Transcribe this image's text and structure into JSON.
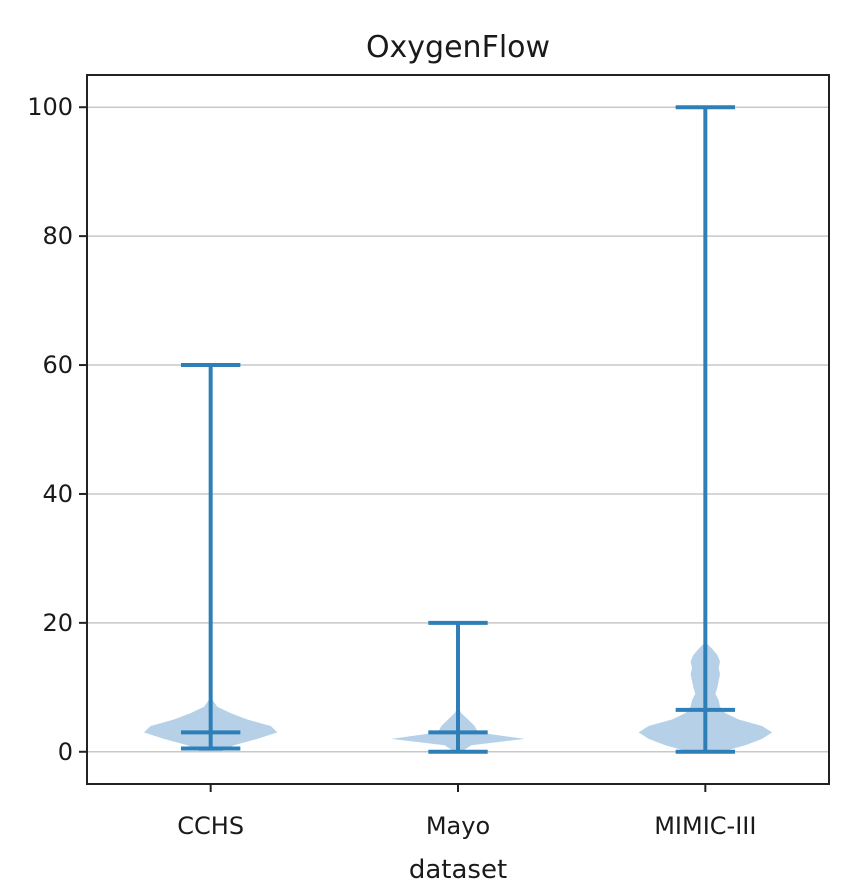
{
  "chart_data": {
    "type": "violin",
    "title": "OxygenFlow",
    "xlabel": "dataset",
    "ylabel": "",
    "ylim": [
      -5,
      105
    ],
    "yticks": [
      0,
      20,
      40,
      60,
      80,
      100
    ],
    "grid": "y",
    "colors": {
      "line": "#2e7fb8",
      "fill": "#a9c9e3",
      "grid": "#c8c8c8",
      "axis": "#222222"
    },
    "categories": [
      "CCHS",
      "Mayo",
      "MIMIC-III"
    ],
    "series": [
      {
        "category": "CCHS",
        "min": 0.5,
        "median": 3,
        "max": 60,
        "density": [
          [
            0,
            0.15
          ],
          [
            1,
            0.35
          ],
          [
            2,
            0.7
          ],
          [
            3,
            1.0
          ],
          [
            4,
            0.9
          ],
          [
            5,
            0.55
          ],
          [
            6,
            0.3
          ],
          [
            7,
            0.1
          ],
          [
            8,
            0.03
          ],
          [
            9,
            0
          ]
        ]
      },
      {
        "category": "Mayo",
        "min": 0,
        "median": 3,
        "max": 20,
        "density": [
          [
            0,
            0.05
          ],
          [
            1,
            0.2
          ],
          [
            2,
            1.0
          ],
          [
            3,
            0.3
          ],
          [
            4,
            0.25
          ],
          [
            5,
            0.15
          ],
          [
            6,
            0.05
          ],
          [
            7,
            0
          ]
        ]
      },
      {
        "category": "MIMIC-III",
        "min": 0,
        "median": 6.5,
        "max": 100,
        "density": [
          [
            0,
            0.25
          ],
          [
            1,
            0.6
          ],
          [
            2,
            0.85
          ],
          [
            3,
            1.0
          ],
          [
            4,
            0.85
          ],
          [
            5,
            0.5
          ],
          [
            6,
            0.3
          ],
          [
            7,
            0.22
          ],
          [
            8,
            0.2
          ],
          [
            9,
            0.15
          ],
          [
            10,
            0.18
          ],
          [
            11,
            0.2
          ],
          [
            12,
            0.22
          ],
          [
            13,
            0.2
          ],
          [
            14,
            0.22
          ],
          [
            15,
            0.18
          ],
          [
            16,
            0.1
          ],
          [
            17,
            0
          ]
        ]
      }
    ]
  }
}
